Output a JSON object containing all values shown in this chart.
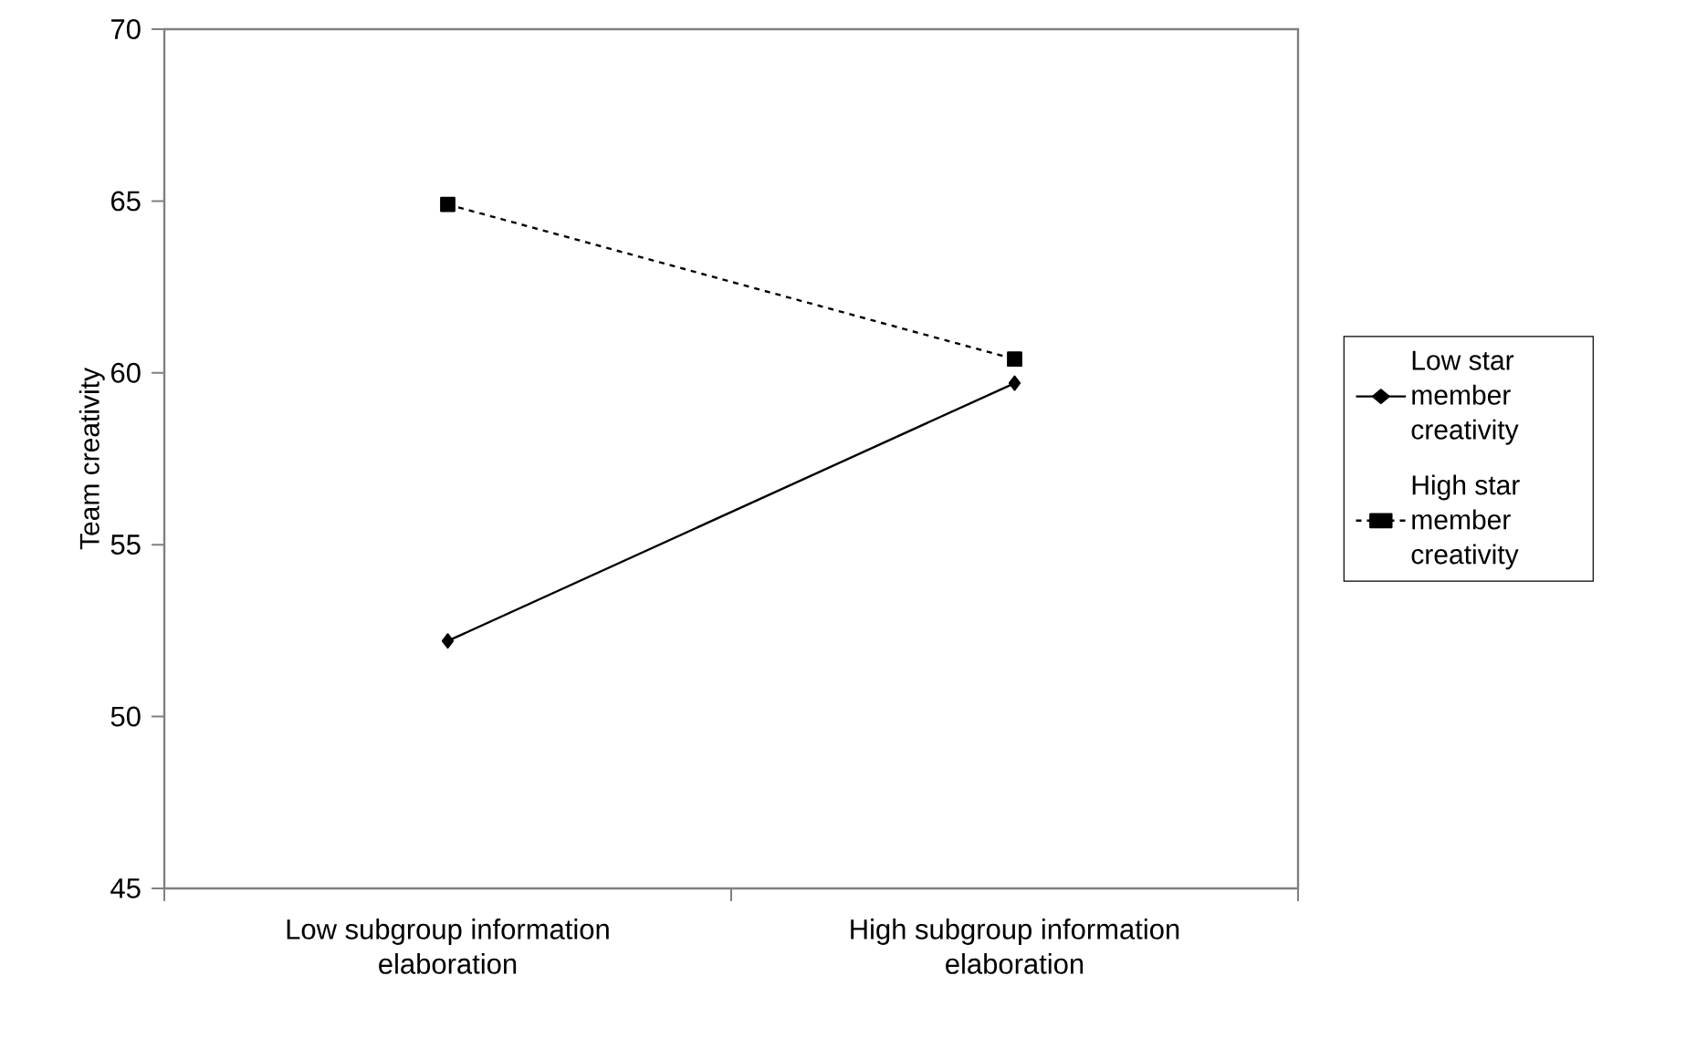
{
  "chart_data": {
    "type": "line",
    "ylabel": "Team creativity",
    "categories": [
      "Low subgroup information elaboration",
      "High subgroup information elaboration"
    ],
    "series": [
      {
        "name": "Low star member creativity",
        "color": "#000000",
        "values": [
          52.2,
          59.7
        ],
        "marker": "diamond",
        "line_style": "solid"
      },
      {
        "name": "High star member creativity",
        "color": "#000000",
        "values": [
          64.9,
          60.4
        ],
        "marker": "square",
        "line_style": "dashed"
      }
    ],
    "ylim": [
      45,
      70
    ],
    "yticks": [
      45,
      50,
      55,
      60,
      65,
      70
    ],
    "grid": false,
    "legend": "right"
  }
}
